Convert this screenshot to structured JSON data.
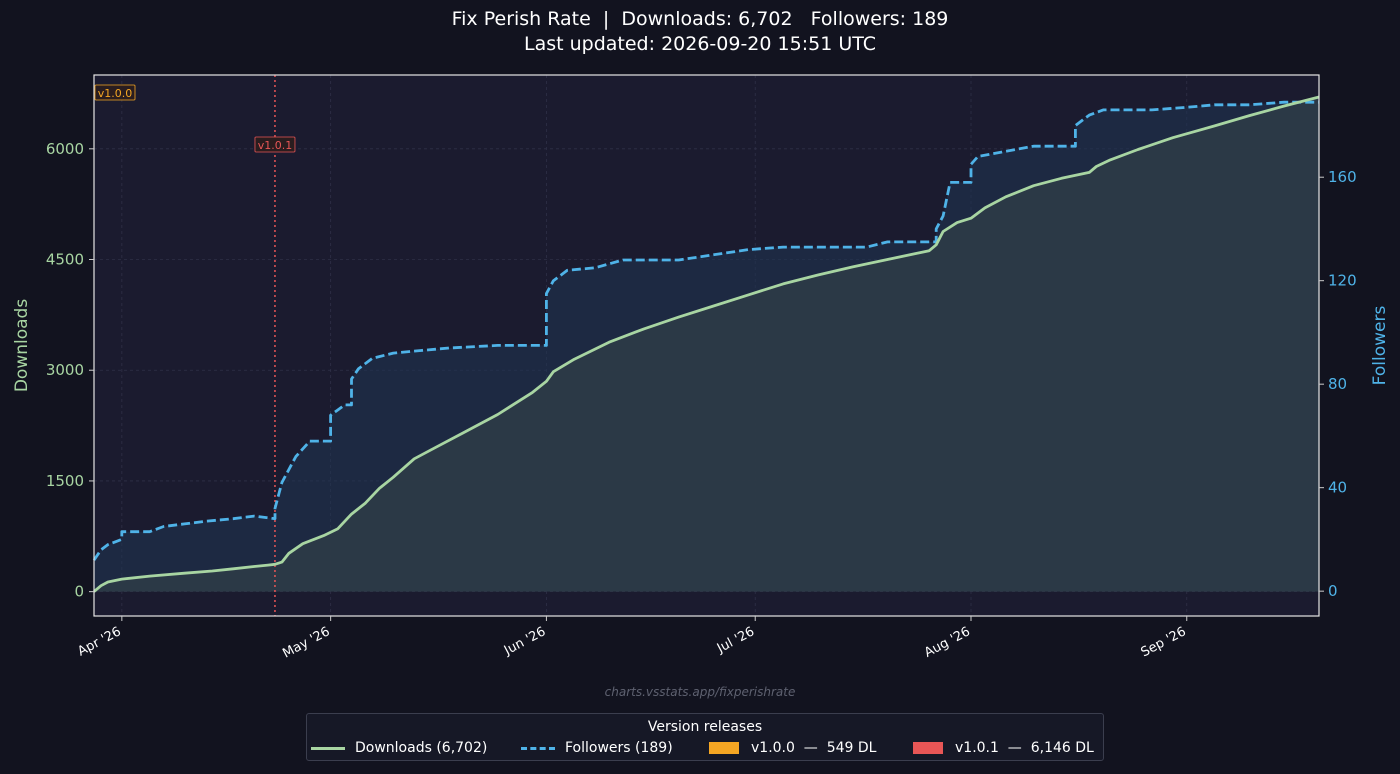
{
  "header": {
    "title_line1": "Fix Perish Rate  |  Downloads: 6,702   Followers: 189",
    "title_line2": "Last updated: 2026-09-20 15:51 UTC"
  },
  "watermark": "charts.vsstats.app/fixperishrate",
  "legend": {
    "title": "Version releases",
    "items": [
      {
        "label": "Downloads (6,702)",
        "kind": "line",
        "color": "#a8d5a2"
      },
      {
        "label": "Followers (189)",
        "kind": "dashed",
        "color": "#4fb3e8"
      },
      {
        "label": "v1.0.0  —  549 DL",
        "kind": "box",
        "color": "#f5a623"
      },
      {
        "label": "v1.0.1  —  6,146 DL",
        "kind": "box",
        "color": "#e85656"
      }
    ]
  },
  "colors": {
    "downloads": "#a8d5a2",
    "followers": "#4fb3e8",
    "v100": "#f5a623",
    "v101": "#e85656",
    "plot_bg": "#1b1b2f"
  },
  "chart_data": {
    "type": "line",
    "xlabel": "",
    "ylabel": "Downloads",
    "y2label": "Followers",
    "x_range": [
      "2026-03-28",
      "2026-09-20"
    ],
    "ylim": [
      -330,
      7000
    ],
    "y2lim": [
      -9.6,
      199.5
    ],
    "y_ticks": [
      0,
      1500,
      3000,
      4500,
      6000
    ],
    "y2_ticks": [
      0,
      40,
      80,
      120,
      160
    ],
    "x_ticks": [
      {
        "date": "2026-04-01",
        "label": "Apr '26"
      },
      {
        "date": "2026-05-01",
        "label": "May '26"
      },
      {
        "date": "2026-06-01",
        "label": "Jun '26"
      },
      {
        "date": "2026-07-01",
        "label": "Jul '26"
      },
      {
        "date": "2026-08-01",
        "label": "Aug '26"
      },
      {
        "date": "2026-09-01",
        "label": "Sep '26"
      }
    ],
    "versions": [
      {
        "label": "v1.0.0",
        "date": "2026-03-28",
        "downloads": 549
      },
      {
        "label": "v1.0.1",
        "date": "2026-04-23",
        "downloads": 6146
      }
    ],
    "series": [
      {
        "name": "Downloads (6,702)",
        "axis": "left",
        "points": [
          [
            "2026-03-28",
            0
          ],
          [
            "2026-03-29",
            80
          ],
          [
            "2026-03-30",
            130
          ],
          [
            "2026-04-01",
            170
          ],
          [
            "2026-04-05",
            210
          ],
          [
            "2026-04-10",
            250
          ],
          [
            "2026-04-14",
            280
          ],
          [
            "2026-04-17",
            310
          ],
          [
            "2026-04-20",
            340
          ],
          [
            "2026-04-22",
            360
          ],
          [
            "2026-04-23",
            370
          ],
          [
            "2026-04-24",
            400
          ],
          [
            "2026-04-25",
            520
          ],
          [
            "2026-04-27",
            650
          ],
          [
            "2026-04-30",
            760
          ],
          [
            "2026-05-02",
            850
          ],
          [
            "2026-05-04",
            1050
          ],
          [
            "2026-05-06",
            1200
          ],
          [
            "2026-05-08",
            1400
          ],
          [
            "2026-05-10",
            1550
          ],
          [
            "2026-05-13",
            1800
          ],
          [
            "2026-05-16",
            1950
          ],
          [
            "2026-05-20",
            2150
          ],
          [
            "2026-05-25",
            2400
          ],
          [
            "2026-05-30",
            2700
          ],
          [
            "2026-06-01",
            2850
          ],
          [
            "2026-06-02",
            2980
          ],
          [
            "2026-06-05",
            3150
          ],
          [
            "2026-06-10",
            3380
          ],
          [
            "2026-06-15",
            3560
          ],
          [
            "2026-06-20",
            3720
          ],
          [
            "2026-06-25",
            3870
          ],
          [
            "2026-06-30",
            4020
          ],
          [
            "2026-07-05",
            4170
          ],
          [
            "2026-07-10",
            4290
          ],
          [
            "2026-07-15",
            4400
          ],
          [
            "2026-07-20",
            4500
          ],
          [
            "2026-07-24",
            4580
          ],
          [
            "2026-07-26",
            4620
          ],
          [
            "2026-07-27",
            4700
          ],
          [
            "2026-07-28",
            4880
          ],
          [
            "2026-07-30",
            5000
          ],
          [
            "2026-08-01",
            5060
          ],
          [
            "2026-08-03",
            5200
          ],
          [
            "2026-08-06",
            5350
          ],
          [
            "2026-08-10",
            5500
          ],
          [
            "2026-08-14",
            5600
          ],
          [
            "2026-08-18",
            5680
          ],
          [
            "2026-08-19",
            5760
          ],
          [
            "2026-08-21",
            5850
          ],
          [
            "2026-08-25",
            5990
          ],
          [
            "2026-08-30",
            6150
          ],
          [
            "2026-09-05",
            6310
          ],
          [
            "2026-09-10",
            6450
          ],
          [
            "2026-09-15",
            6580
          ],
          [
            "2026-09-20",
            6702
          ]
        ]
      },
      {
        "name": "Followers (189)",
        "axis": "right",
        "points": [
          [
            "2026-03-28",
            12
          ],
          [
            "2026-03-29",
            16
          ],
          [
            "2026-03-30",
            18
          ],
          [
            "2026-04-01",
            20
          ],
          [
            "2026-04-01",
            23
          ],
          [
            "2026-04-05",
            23
          ],
          [
            "2026-04-07",
            25
          ],
          [
            "2026-04-10",
            26
          ],
          [
            "2026-04-13",
            27
          ],
          [
            "2026-04-17",
            28
          ],
          [
            "2026-04-20",
            29
          ],
          [
            "2026-04-23",
            28
          ],
          [
            "2026-04-23",
            32
          ],
          [
            "2026-04-24",
            42
          ],
          [
            "2026-04-26",
            52
          ],
          [
            "2026-04-28",
            58
          ],
          [
            "2026-05-01",
            58
          ],
          [
            "2026-05-01",
            68
          ],
          [
            "2026-05-02",
            70
          ],
          [
            "2026-05-03",
            72
          ],
          [
            "2026-05-04",
            72
          ],
          [
            "2026-05-04",
            82
          ],
          [
            "2026-05-05",
            86
          ],
          [
            "2026-05-07",
            90
          ],
          [
            "2026-05-10",
            92
          ],
          [
            "2026-05-14",
            93
          ],
          [
            "2026-05-18",
            94
          ],
          [
            "2026-05-25",
            95
          ],
          [
            "2026-06-01",
            95
          ],
          [
            "2026-06-01",
            115
          ],
          [
            "2026-06-02",
            120
          ],
          [
            "2026-06-04",
            124
          ],
          [
            "2026-06-08",
            125
          ],
          [
            "2026-06-12",
            128
          ],
          [
            "2026-06-20",
            128
          ],
          [
            "2026-06-25",
            130
          ],
          [
            "2026-06-30",
            132
          ],
          [
            "2026-07-05",
            133
          ],
          [
            "2026-07-12",
            133
          ],
          [
            "2026-07-17",
            133
          ],
          [
            "2026-07-20",
            135
          ],
          [
            "2026-07-26",
            135
          ],
          [
            "2026-07-27",
            135
          ],
          [
            "2026-07-27",
            140
          ],
          [
            "2026-07-28",
            145
          ],
          [
            "2026-07-29",
            158
          ],
          [
            "2026-08-01",
            158
          ],
          [
            "2026-08-01",
            165
          ],
          [
            "2026-08-02",
            168
          ],
          [
            "2026-08-06",
            170
          ],
          [
            "2026-08-10",
            172
          ],
          [
            "2026-08-16",
            172
          ],
          [
            "2026-08-16",
            180
          ],
          [
            "2026-08-18",
            184
          ],
          [
            "2026-08-20",
            186
          ],
          [
            "2026-08-27",
            186
          ],
          [
            "2026-09-01",
            187
          ],
          [
            "2026-09-05",
            188
          ],
          [
            "2026-09-10",
            188
          ],
          [
            "2026-09-15",
            189
          ],
          [
            "2026-09-20",
            189
          ]
        ]
      }
    ]
  }
}
